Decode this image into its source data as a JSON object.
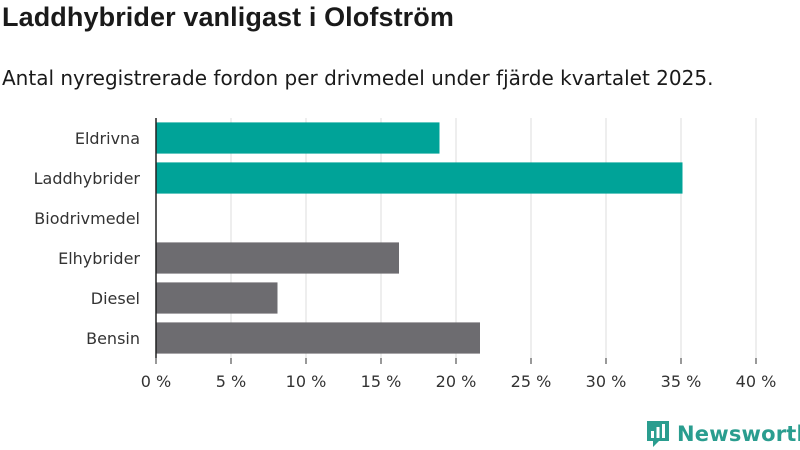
{
  "title": "Laddhybrider vanligast i Olofström",
  "subtitle": "Antal nyregistrerade fordon per drivmedel under fjärde kvartalet 2025.",
  "brand": {
    "name": "Newsworthy",
    "icon": "newsworthy-logo-icon",
    "color": "#2a9d8f"
  },
  "chart_data": {
    "type": "bar",
    "orientation": "horizontal",
    "title": "Laddhybrider vanligast i Olofström",
    "subtitle": "Antal nyregistrerade fordon per drivmedel under fjärde kvartalet 2025.",
    "categories": [
      "Eldrivna",
      "Laddhybrider",
      "Biodrivmedel",
      "Elhybrider",
      "Diesel",
      "Bensin"
    ],
    "values": [
      18.9,
      35.1,
      0,
      16.2,
      8.1,
      21.6
    ],
    "colors": [
      "#00a398",
      "#00a398",
      "#00a398",
      "#6d6c70",
      "#6d6c70",
      "#6d6c70"
    ],
    "xlim": [
      0,
      40
    ],
    "xticks": [
      0,
      5,
      10,
      15,
      20,
      25,
      30,
      35,
      40
    ],
    "xtick_labels": [
      "0 %",
      "5 %",
      "10 %",
      "15 %",
      "20 %",
      "25 %",
      "30 %",
      "35 %",
      "40 %"
    ],
    "xlabel": "",
    "ylabel": "",
    "grid": true
  }
}
